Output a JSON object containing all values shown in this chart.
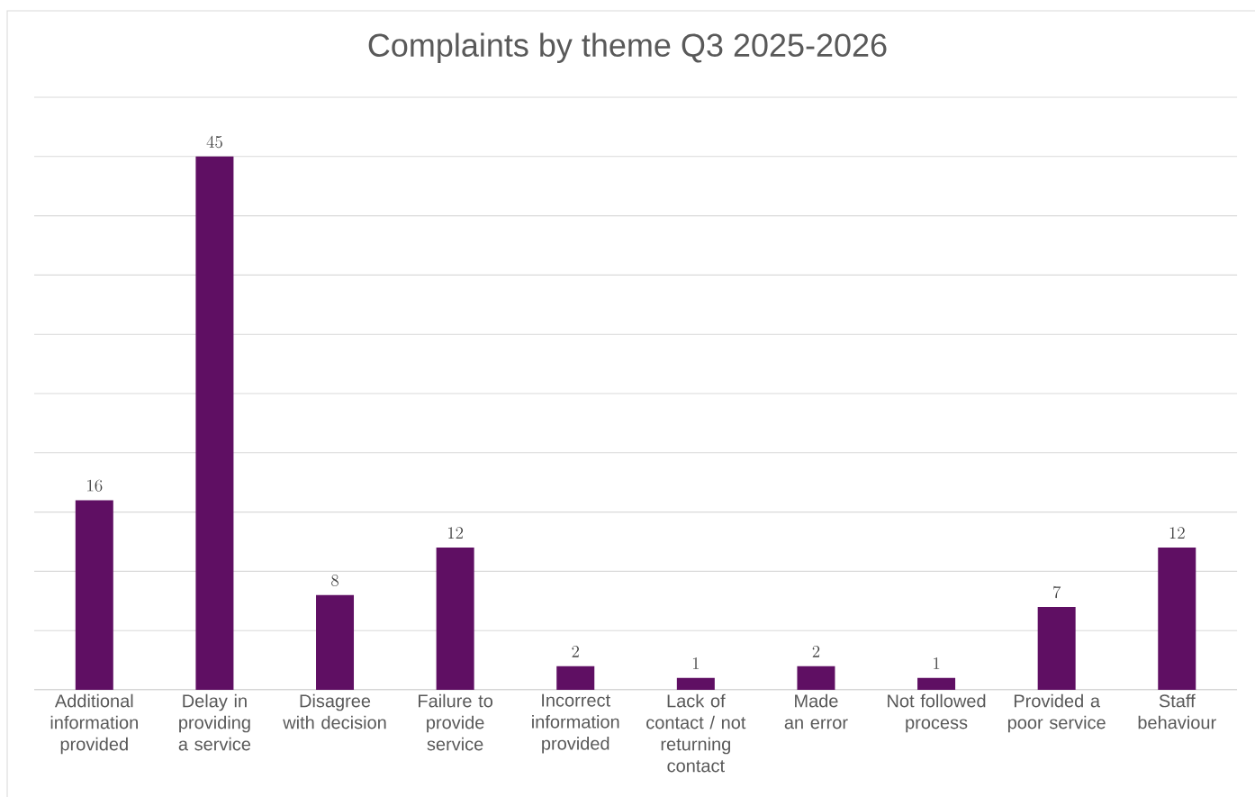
{
  "chart_data": {
    "type": "bar",
    "title": "Complaints by theme Q3 2025-2026",
    "categories": [
      "Additional information provided",
      "Delay in providing a service",
      "Disagree with decision",
      "Failure to provide service",
      "Incorrect information provided",
      "Lack of contact / not returning contact",
      "Made an error",
      "Not followed process",
      "Provided a poor service",
      "Staff behaviour"
    ],
    "values": [
      16,
      45,
      8,
      12,
      2,
      1,
      2,
      1,
      7,
      12
    ],
    "color": "#5f0f63",
    "ylim": [
      0,
      50
    ],
    "yticks": [
      {
        "value": 0,
        "label": null
      },
      {
        "value": 5,
        "label": null
      },
      {
        "value": 10,
        "label": null
      },
      {
        "value": 15,
        "label": null
      },
      {
        "value": 20,
        "label": null
      },
      {
        "value": 25,
        "label": null
      },
      {
        "value": 30,
        "label": null
      },
      {
        "value": 35,
        "label": null
      },
      {
        "value": 40,
        "label": null
      },
      {
        "value": 45,
        "label": null
      },
      {
        "value": 50,
        "label": null
      }
    ],
    "grid": "y",
    "data_labels": true,
    "tick_labels": "x"
  }
}
